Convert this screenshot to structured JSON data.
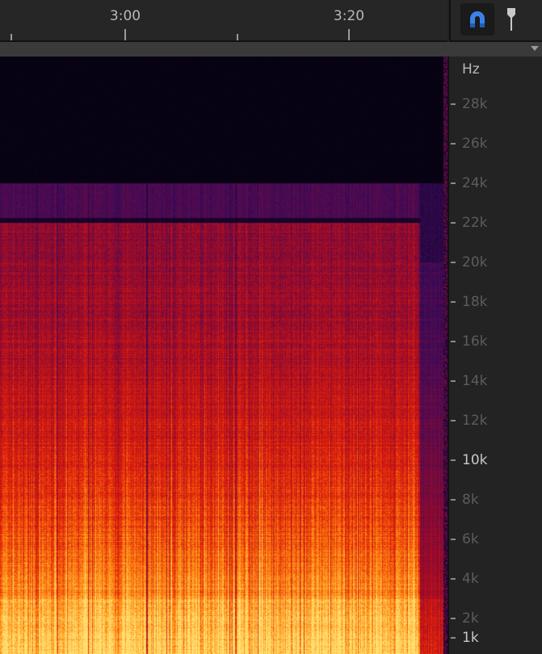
{
  "timeline": {
    "labels": [
      {
        "text": "3:00"
      },
      {
        "text": "3:20"
      }
    ]
  },
  "toolbar": {
    "snap_icon": "magnet-icon",
    "marker_icon": "playhead-marker-icon",
    "snap_active_color": "#3b82e8"
  },
  "frequency_axis": {
    "unit": "Hz",
    "labels": [
      "28k",
      "26k",
      "24k",
      "22k",
      "20k",
      "18k",
      "16k",
      "14k",
      "12k",
      "10k",
      "8k",
      "6k",
      "4k",
      "2k",
      "1k"
    ],
    "highlighted": [
      "10k",
      "1k"
    ]
  },
  "spectrogram": {
    "colormap": [
      "#050210",
      "#3a0a5a",
      "#9a0a2a",
      "#e0200a",
      "#ff8a10",
      "#ffe070"
    ]
  }
}
